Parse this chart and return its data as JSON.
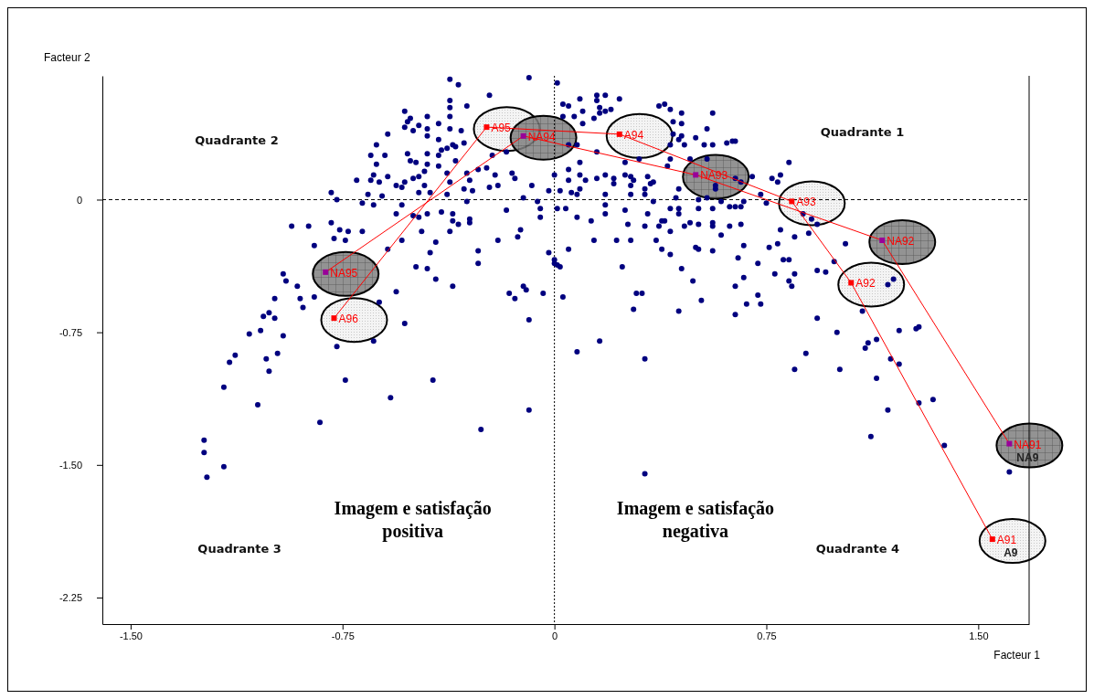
{
  "chart_data": {
    "type": "scatter",
    "xlabel": "Facteur 1",
    "ylabel": "Facteur 2",
    "xlim": [
      -1.6,
      1.68
    ],
    "ylim": [
      -2.4,
      0.7
    ],
    "xticks": [
      {
        "value": -1.5,
        "label": "-1.50"
      },
      -0.75,
      0,
      0.75,
      {
        "value": 1.5,
        "label": "1.50"
      }
    ],
    "yticks": [
      0,
      -0.75,
      {
        "value": -1.5,
        "label": "-1.50"
      },
      -2.25
    ],
    "ref_lines": [
      {
        "axis": "x",
        "value": 0,
        "color": "#000000",
        "line_style": "dotted"
      },
      {
        "axis": "y",
        "value": 0,
        "color": "#000000",
        "line_style": "dashed"
      }
    ],
    "annotations": [
      "Quadrante 1",
      "Quadrante 2",
      "Quadrante 3",
      "Quadrante 4",
      "Imagem e satisfação positiva",
      "Imagem e satisfação negativa",
      {
        "text": "NA9",
        "x": 1.61,
        "y": -1.38
      },
      {
        "text": "A9",
        "x": 1.55,
        "y": -1.92
      }
    ],
    "series": [
      {
        "color": "#00007f",
        "marker": "circle",
        "x": [
          -0.37,
          -0.34,
          -0.09,
          -0.23,
          -0.37,
          -0.31,
          -0.37,
          -0.53,
          -0.45,
          -0.51,
          -0.37,
          -0.52,
          -0.41,
          -0.45,
          -0.53,
          -0.5,
          -0.48,
          -0.37,
          -0.33,
          -0.59,
          -0.45,
          -0.41,
          -0.36,
          -0.32,
          -0.63,
          -0.38,
          -0.35,
          -0.4,
          -0.6,
          -0.65,
          -0.52,
          -0.45,
          -0.41,
          -0.22,
          -0.17,
          -0.51,
          -0.49,
          -0.45,
          -0.35,
          -0.63,
          -0.46,
          -0.41,
          -0.27,
          -0.24,
          -0.38,
          -0.64,
          -0.59,
          -0.48,
          -0.31,
          -0.21,
          -0.15,
          -0.7,
          -0.65,
          -0.62,
          -0.53,
          -0.5,
          -0.37,
          -0.3,
          -0.23,
          -0.2,
          -0.14,
          -0.08,
          -0.02,
          -0.56,
          -0.54,
          -0.46,
          -0.48,
          -0.32,
          -0.79,
          -0.66,
          -0.61,
          -0.44,
          -0.38,
          -0.29,
          -0.11,
          -0.06,
          -0.77,
          -0.68,
          -0.64,
          -0.54,
          -0.31,
          -0.05,
          -0.56,
          -0.5,
          -0.45,
          -0.4,
          -0.36,
          -0.17,
          -0.05,
          -0.36,
          -0.3,
          -0.48,
          -0.93,
          -0.87,
          -0.79,
          -0.76,
          -0.73,
          -0.68,
          -0.47,
          -0.37,
          -0.34,
          -0.3,
          -0.12,
          -0.13,
          -0.2,
          -0.78,
          -0.74,
          -0.85,
          -0.54,
          -0.42,
          -0.27,
          -0.44,
          -0.59,
          -0.02,
          -0.27,
          -0.49,
          -0.45,
          0.0,
          -0.96,
          -0.95,
          -0.91,
          -0.42,
          -0.36,
          -0.56,
          -0.16,
          -0.11,
          -0.04,
          -0.1,
          -0.99,
          -0.9,
          -0.85,
          -0.62,
          -0.14,
          -0.89,
          -1.03,
          -1.01,
          -0.99,
          -0.53,
          -0.09,
          -1.08,
          -1.04,
          -0.96,
          -0.77,
          -0.64,
          -0.98,
          -1.13,
          -1.15,
          -1.02,
          -1.01,
          -1.17,
          -1.05,
          -0.74,
          -0.43,
          -0.58,
          -0.83,
          -0.26,
          -0.09,
          -1.24,
          -1.24,
          -1.17,
          -1.23,
          0.01,
          0.15,
          0.18,
          0.23,
          0.09,
          0.03,
          0.05,
          0.37,
          0.39,
          0.41,
          0.45,
          0.15,
          0.16,
          0.2,
          0.1,
          0.03,
          0.07,
          0.16,
          0.18,
          0.1,
          0.14,
          0.42,
          0.45,
          0.56,
          0.54,
          0.42,
          0.45,
          0.44,
          0.5,
          0.53,
          0.56,
          0.61,
          0.63,
          0.64,
          0.83,
          0.46,
          0.48,
          0.54,
          0.41,
          0.08,
          0.05,
          0.09,
          0.15,
          0.25,
          0.3,
          0.41,
          0.4,
          0.05,
          0.09,
          0.05,
          0.0,
          0.11,
          0.15,
          0.18,
          0.21,
          0.21,
          0.25,
          0.27,
          0.27,
          0.28,
          0.33,
          0.34,
          0.35,
          0.32,
          0.44,
          0.02,
          0.06,
          0.08,
          0.09,
          0.18,
          0.27,
          0.32,
          0.43,
          0.51,
          0.54,
          0.57,
          0.57,
          0.7,
          0.77,
          0.79,
          0.8,
          0.66,
          0.64,
          0.73,
          0.67,
          0.75,
          0.01,
          0.04,
          0.13,
          0.18,
          0.18,
          0.25,
          0.35,
          0.41,
          0.44,
          0.44,
          0.51,
          0.56,
          0.59,
          0.62,
          0.64,
          0.66,
          0.08,
          0.26,
          0.33,
          0.38,
          0.39,
          0.37,
          0.32,
          0.41,
          0.46,
          0.48,
          0.51,
          0.56,
          0.56,
          0.59,
          0.62,
          0.66,
          0.8,
          0.85,
          0.93,
          0.88,
          0.91,
          0.9,
          1.03,
          0.14,
          0.27,
          0.36,
          0.38,
          0.22,
          0.41,
          0.5,
          0.51,
          0.56,
          0.67,
          0.76,
          0.79,
          0.01,
          0.02,
          0.0,
          0.05,
          0.24,
          0.45,
          0.65,
          0.72,
          0.81,
          0.83,
          0.85,
          0.78,
          0.83,
          0.84,
          0.67,
          0.93,
          0.96,
          0.99,
          0.49,
          0.64,
          0.68,
          0.73,
          0.72,
          0.52,
          0.29,
          0.31,
          0.03,
          0.28,
          0.44,
          0.64,
          0.93,
          1.18,
          1.2,
          1.09,
          1.0,
          1.22,
          1.28,
          1.29,
          0.16,
          1.11,
          1.14,
          0.08,
          0.32,
          0.32,
          0.85,
          0.89,
          1.01,
          1.1,
          1.19,
          1.22,
          1.14,
          1.18,
          1.29,
          1.34,
          1.12,
          1.38,
          1.61
        ],
        "values": [
          0.68,
          0.65,
          0.69,
          0.59,
          0.56,
          0.53,
          0.52,
          0.5,
          0.47,
          0.46,
          0.47,
          0.44,
          0.43,
          0.4,
          0.41,
          0.39,
          0.42,
          0.4,
          0.39,
          0.37,
          0.36,
          0.34,
          0.31,
          0.32,
          0.31,
          0.29,
          0.3,
          0.28,
          0.25,
          0.25,
          0.26,
          0.26,
          0.25,
          0.25,
          0.27,
          0.22,
          0.21,
          0.2,
          0.22,
          0.2,
          0.16,
          0.19,
          0.17,
          0.18,
          0.15,
          0.14,
          0.13,
          0.13,
          0.15,
          0.14,
          0.15,
          0.11,
          0.11,
          0.1,
          0.1,
          0.12,
          0.1,
          0.11,
          0.07,
          0.08,
          0.12,
          0.08,
          0.05,
          0.08,
          0.07,
          0.08,
          0.04,
          0.06,
          0.04,
          0.03,
          0.02,
          0.04,
          0.03,
          0.05,
          0.01,
          -0.01,
          0.0,
          -0.02,
          -0.03,
          -0.03,
          -0.01,
          -0.05,
          -0.08,
          -0.09,
          -0.08,
          -0.07,
          -0.08,
          -0.06,
          -0.1,
          -0.12,
          -0.11,
          -0.1,
          -0.15,
          -0.15,
          -0.13,
          -0.17,
          -0.18,
          -0.18,
          -0.18,
          -0.18,
          -0.14,
          -0.13,
          -0.17,
          -0.21,
          -0.23,
          -0.22,
          -0.23,
          -0.26,
          -0.23,
          -0.24,
          -0.29,
          -0.3,
          -0.28,
          -0.3,
          -0.36,
          -0.38,
          -0.39,
          -0.36,
          -0.42,
          -0.46,
          -0.49,
          -0.45,
          -0.49,
          -0.52,
          -0.53,
          -0.49,
          -0.53,
          -0.51,
          -0.56,
          -0.56,
          -0.55,
          -0.58,
          -0.56,
          -0.61,
          -0.66,
          -0.64,
          -0.67,
          -0.7,
          -0.68,
          -0.76,
          -0.74,
          -0.77,
          -0.83,
          -0.8,
          -0.87,
          -0.88,
          -0.92,
          -0.9,
          -0.97,
          -1.06,
          -1.16,
          -1.02,
          -1.02,
          -1.12,
          -1.26,
          -1.3,
          -1.19,
          -1.36,
          -1.43,
          -1.51,
          -1.57,
          0.66,
          0.59,
          0.59,
          0.57,
          0.57,
          0.54,
          0.53,
          0.53,
          0.54,
          0.51,
          0.49,
          0.56,
          0.52,
          0.51,
          0.5,
          0.47,
          0.47,
          0.49,
          0.5,
          0.43,
          0.46,
          0.44,
          0.43,
          0.49,
          0.4,
          0.37,
          0.36,
          0.34,
          0.35,
          0.31,
          0.31,
          0.32,
          0.33,
          0.33,
          0.21,
          0.31,
          0.23,
          0.23,
          0.31,
          0.31,
          0.31,
          0.21,
          0.27,
          0.21,
          0.23,
          0.23,
          0.19,
          0.17,
          0.14,
          0.11,
          0.14,
          0.11,
          0.12,
          0.14,
          0.12,
          0.09,
          0.14,
          0.08,
          0.13,
          0.11,
          0.13,
          0.09,
          0.1,
          0.06,
          0.06,
          0.05,
          0.04,
          0.03,
          0.06,
          0.03,
          0.03,
          0.03,
          0.01,
          0.0,
          0.01,
          0.06,
          0.08,
          0.13,
          0.12,
          0.1,
          0.14,
          0.1,
          0.12,
          0.03,
          -0.01,
          -0.02,
          -0.05,
          -0.05,
          -0.12,
          -0.03,
          -0.08,
          -0.06,
          -0.01,
          -0.05,
          -0.05,
          -0.08,
          -0.05,
          -0.05,
          -0.01,
          -0.04,
          -0.04,
          -0.04,
          -0.1,
          -0.14,
          -0.08,
          -0.12,
          -0.12,
          -0.15,
          -0.15,
          -0.18,
          -0.15,
          -0.13,
          -0.14,
          -0.13,
          -0.15,
          -0.2,
          -0.15,
          -0.14,
          -0.17,
          -0.21,
          -0.14,
          -0.08,
          -0.11,
          -0.19,
          -0.25,
          -0.23,
          -0.23,
          -0.23,
          -0.28,
          -0.23,
          -0.31,
          -0.27,
          -0.28,
          -0.29,
          -0.26,
          -0.27,
          -0.25,
          -0.37,
          -0.38,
          -0.34,
          -0.28,
          -0.38,
          -0.39,
          -0.33,
          -0.36,
          -0.34,
          -0.34,
          -0.42,
          -0.42,
          -0.46,
          -0.49,
          -0.44,
          -0.4,
          -0.41,
          -0.35,
          -0.46,
          -0.49,
          -0.59,
          -0.59,
          -0.54,
          -0.57,
          -0.53,
          -0.53,
          -0.55,
          -0.62,
          -0.63,
          -0.65,
          -0.67,
          -0.48,
          -0.45,
          -0.63,
          -0.75,
          -0.74,
          -0.73,
          -0.72,
          -0.8,
          -0.81,
          -0.79,
          -0.86,
          -0.9,
          -1.55,
          -0.96,
          -0.87,
          -0.96,
          -0.84,
          -0.9,
          -0.93,
          -1.01,
          -1.19,
          -1.15,
          -1.13,
          -1.34,
          -1.39,
          -1.54
        ]
      },
      {
        "type": "line",
        "color": "#ff0000",
        "marker": "square",
        "line_style": "solid",
        "x": [
          -0.78,
          -0.24,
          0.23,
          0.84,
          1.05,
          1.55
        ],
        "values": [
          -0.67,
          0.41,
          0.37,
          -0.01,
          -0.47,
          -1.92
        ],
        "value_labels": [
          "A96",
          "A95",
          "A94",
          "A93",
          "A92",
          "A91"
        ]
      },
      {
        "type": "line",
        "color": "#ff0000",
        "colors": [
          "#990099",
          "#990099",
          "#990099",
          "#990099",
          "#990099"
        ],
        "marker": "square",
        "line_style": "solid",
        "x": [
          -0.81,
          -0.11,
          0.5,
          1.16,
          1.61
        ],
        "values": [
          -0.41,
          0.36,
          0.14,
          -0.23,
          -1.38
        ],
        "value_labels": [
          "NA95",
          "NA94",
          "NA93",
          "NA92",
          "NA91"
        ]
      }
    ]
  }
}
